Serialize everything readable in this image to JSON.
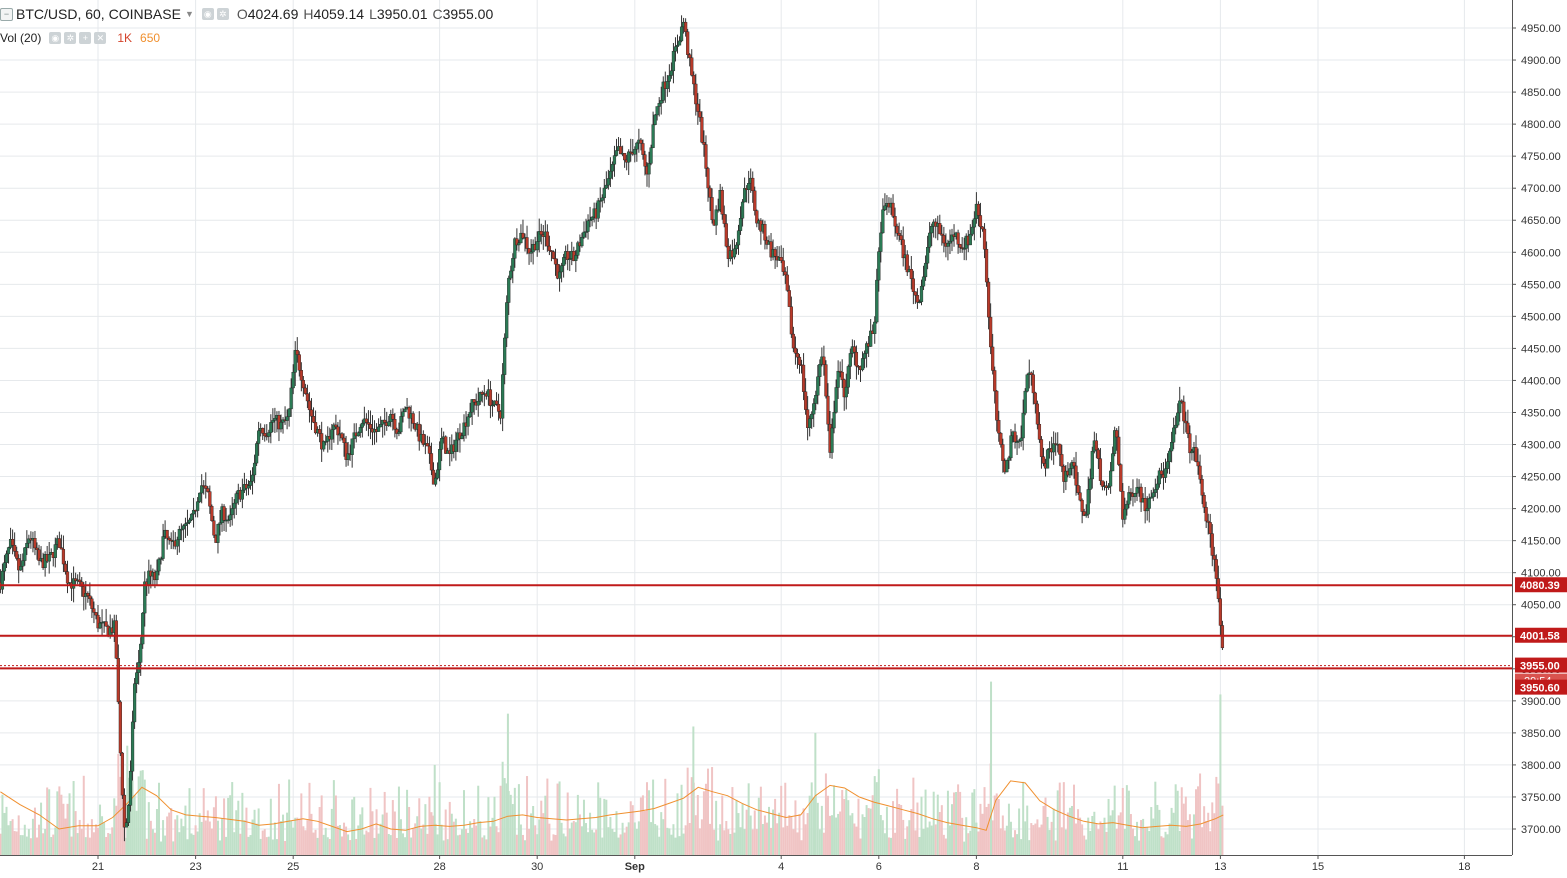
{
  "header": {
    "symbol": "BTC/USD, 60, COINBASE",
    "o_label": "O",
    "o_value": "4024.69",
    "h_label": "H",
    "h_value": "4059.14",
    "l_label": "L",
    "l_value": "3950.01",
    "c_label": "C",
    "c_value": "3955.00",
    "vol_label": "Vol (20)",
    "vol_value": "1K",
    "vol_ma_value": "650"
  },
  "colors": {
    "up": "#2b7a55",
    "down": "#b93a2a",
    "line": "#c01a1a",
    "vol_up": "#bfe0c8",
    "vol_down": "#f0c4c4",
    "vol_ma": "#f0902f",
    "grid": "#e6e9ec"
  },
  "chart_data": {
    "type": "candlestick",
    "ylim": [
      3660,
      4975
    ],
    "yticks": [
      3700,
      3750,
      3800,
      3850,
      3900,
      3950,
      4000,
      4050,
      4100,
      4150,
      4200,
      4250,
      4300,
      4350,
      4400,
      4450,
      4500,
      4550,
      4600,
      4650,
      4700,
      4750,
      4800,
      4850,
      4900,
      4950
    ],
    "ytick_labels": [
      "3700.00",
      "3750.00",
      "3800.00",
      "3850.00",
      "3900.00",
      "3950.00",
      "4000.00",
      "4050.00",
      "4100.00",
      "4150.00",
      "4200.00",
      "4250.00",
      "4300.00",
      "4350.00",
      "4400.00",
      "4450.00",
      "4500.00",
      "4550.00",
      "4600.00",
      "4650.00",
      "4700.00",
      "4750.00",
      "4800.00",
      "4850.00",
      "4900.00",
      "4950.00"
    ],
    "x_ticks": [
      {
        "label": "21",
        "day": 0
      },
      {
        "label": "23",
        "day": 2
      },
      {
        "label": "25",
        "day": 4
      },
      {
        "label": "28",
        "day": 7
      },
      {
        "label": "30",
        "day": 9
      },
      {
        "label": "Sep",
        "day": 11
      },
      {
        "label": "4",
        "day": 14
      },
      {
        "label": "6",
        "day": 16
      },
      {
        "label": "8",
        "day": 18
      },
      {
        "label": "11",
        "day": 21
      },
      {
        "label": "13",
        "day": 23
      },
      {
        "label": "15",
        "day": 25
      },
      {
        "label": "18",
        "day": 28
      }
    ],
    "close_path": [
      [
        -2.0,
        4085
      ],
      [
        -1.8,
        4145
      ],
      [
        -1.6,
        4100
      ],
      [
        -1.4,
        4160
      ],
      [
        -1.2,
        4115
      ],
      [
        -1.0,
        4120
      ],
      [
        -0.8,
        4150
      ],
      [
        -0.6,
        4085
      ],
      [
        -0.4,
        4080
      ],
      [
        -0.2,
        4060
      ],
      [
        0.0,
        4020
      ],
      [
        0.2,
        4010
      ],
      [
        0.35,
        4015
      ],
      [
        0.45,
        3830
      ],
      [
        0.55,
        3690
      ],
      [
        0.65,
        3755
      ],
      [
        0.75,
        3930
      ],
      [
        0.85,
        3960
      ],
      [
        0.95,
        4080
      ],
      [
        1.05,
        4095
      ],
      [
        1.2,
        4090
      ],
      [
        1.35,
        4160
      ],
      [
        1.5,
        4140
      ],
      [
        1.65,
        4160
      ],
      [
        1.8,
        4170
      ],
      [
        1.95,
        4185
      ],
      [
        2.1,
        4240
      ],
      [
        2.25,
        4220
      ],
      [
        2.4,
        4150
      ],
      [
        2.55,
        4195
      ],
      [
        2.7,
        4180
      ],
      [
        2.85,
        4220
      ],
      [
        3.0,
        4230
      ],
      [
        3.15,
        4240
      ],
      [
        3.3,
        4330
      ],
      [
        3.45,
        4320
      ],
      [
        3.6,
        4340
      ],
      [
        3.75,
        4330
      ],
      [
        3.9,
        4340
      ],
      [
        4.05,
        4445
      ],
      [
        4.2,
        4400
      ],
      [
        4.35,
        4350
      ],
      [
        4.5,
        4320
      ],
      [
        4.65,
        4290
      ],
      [
        4.8,
        4330
      ],
      [
        4.95,
        4320
      ],
      [
        5.1,
        4280
      ],
      [
        5.25,
        4310
      ],
      [
        5.4,
        4340
      ],
      [
        5.55,
        4330
      ],
      [
        5.7,
        4320
      ],
      [
        5.85,
        4330
      ],
      [
        6.0,
        4350
      ],
      [
        6.15,
        4320
      ],
      [
        6.3,
        4360
      ],
      [
        6.45,
        4340
      ],
      [
        6.6,
        4310
      ],
      [
        6.75,
        4290
      ],
      [
        6.9,
        4240
      ],
      [
        7.05,
        4310
      ],
      [
        7.2,
        4280
      ],
      [
        7.35,
        4310
      ],
      [
        7.5,
        4330
      ],
      [
        7.65,
        4360
      ],
      [
        7.8,
        4370
      ],
      [
        7.95,
        4385
      ],
      [
        8.1,
        4360
      ],
      [
        8.25,
        4350
      ],
      [
        8.4,
        4550
      ],
      [
        8.55,
        4620
      ],
      [
        8.7,
        4630
      ],
      [
        8.85,
        4600
      ],
      [
        9.0,
        4620
      ],
      [
        9.15,
        4630
      ],
      [
        9.3,
        4600
      ],
      [
        9.45,
        4560
      ],
      [
        9.6,
        4595
      ],
      [
        9.75,
        4590
      ],
      [
        9.9,
        4620
      ],
      [
        10.05,
        4650
      ],
      [
        10.2,
        4660
      ],
      [
        10.35,
        4690
      ],
      [
        10.5,
        4720
      ],
      [
        10.65,
        4760
      ],
      [
        10.8,
        4740
      ],
      [
        10.95,
        4760
      ],
      [
        11.1,
        4770
      ],
      [
        11.25,
        4720
      ],
      [
        11.4,
        4810
      ],
      [
        11.55,
        4850
      ],
      [
        11.7,
        4880
      ],
      [
        11.85,
        4920
      ],
      [
        12.0,
        4960
      ],
      [
        12.15,
        4880
      ],
      [
        12.3,
        4820
      ],
      [
        12.45,
        4740
      ],
      [
        12.6,
        4640
      ],
      [
        12.75,
        4690
      ],
      [
        12.9,
        4600
      ],
      [
        13.05,
        4600
      ],
      [
        13.2,
        4680
      ],
      [
        13.35,
        4720
      ],
      [
        13.5,
        4650
      ],
      [
        13.65,
        4630
      ],
      [
        13.8,
        4600
      ],
      [
        13.95,
        4590
      ],
      [
        14.1,
        4550
      ],
      [
        14.25,
        4450
      ],
      [
        14.4,
        4430
      ],
      [
        14.55,
        4320
      ],
      [
        14.7,
        4380
      ],
      [
        14.85,
        4450
      ],
      [
        15.0,
        4280
      ],
      [
        15.15,
        4420
      ],
      [
        15.3,
        4380
      ],
      [
        15.45,
        4450
      ],
      [
        15.6,
        4420
      ],
      [
        15.75,
        4450
      ],
      [
        15.9,
        4480
      ],
      [
        16.05,
        4650
      ],
      [
        16.2,
        4680
      ],
      [
        16.35,
        4640
      ],
      [
        16.5,
        4600
      ],
      [
        16.65,
        4560
      ],
      [
        16.8,
        4520
      ],
      [
        16.95,
        4580
      ],
      [
        17.1,
        4650
      ],
      [
        17.25,
        4630
      ],
      [
        17.4,
        4610
      ],
      [
        17.55,
        4630
      ],
      [
        17.7,
        4610
      ],
      [
        17.85,
        4620
      ],
      [
        18.0,
        4670
      ],
      [
        18.15,
        4630
      ],
      [
        18.3,
        4440
      ],
      [
        18.45,
        4310
      ],
      [
        18.6,
        4260
      ],
      [
        18.75,
        4320
      ],
      [
        18.9,
        4300
      ],
      [
        19.05,
        4420
      ],
      [
        19.2,
        4380
      ],
      [
        19.35,
        4260
      ],
      [
        19.5,
        4290
      ],
      [
        19.65,
        4310
      ],
      [
        19.8,
        4240
      ],
      [
        19.95,
        4280
      ],
      [
        20.1,
        4210
      ],
      [
        20.25,
        4190
      ],
      [
        20.4,
        4310
      ],
      [
        20.55,
        4250
      ],
      [
        20.7,
        4220
      ],
      [
        20.85,
        4330
      ],
      [
        21.0,
        4190
      ],
      [
        21.15,
        4220
      ],
      [
        21.3,
        4240
      ],
      [
        21.45,
        4200
      ],
      [
        21.6,
        4230
      ],
      [
        21.75,
        4250
      ],
      [
        21.9,
        4260
      ],
      [
        22.05,
        4320
      ],
      [
        22.2,
        4370
      ],
      [
        22.35,
        4300
      ],
      [
        22.5,
        4280
      ],
      [
        22.65,
        4210
      ],
      [
        22.8,
        4150
      ],
      [
        22.95,
        4080
      ],
      [
        23.0,
        4020
      ],
      [
        23.06,
        3955
      ]
    ],
    "volume_ma_path": [
      [
        -2.0,
        3758
      ],
      [
        -1.6,
        3738
      ],
      [
        -1.2,
        3722
      ],
      [
        -0.8,
        3700
      ],
      [
        -0.4,
        3705
      ],
      [
        0.0,
        3705
      ],
      [
        0.3,
        3718
      ],
      [
        0.6,
        3740
      ],
      [
        0.9,
        3765
      ],
      [
        1.2,
        3752
      ],
      [
        1.5,
        3730
      ],
      [
        1.8,
        3722
      ],
      [
        2.1,
        3720
      ],
      [
        2.4,
        3718
      ],
      [
        2.7,
        3715
      ],
      [
        3.0,
        3712
      ],
      [
        3.3,
        3706
      ],
      [
        3.6,
        3708
      ],
      [
        3.9,
        3712
      ],
      [
        4.2,
        3716
      ],
      [
        4.5,
        3712
      ],
      [
        4.8,
        3704
      ],
      [
        5.1,
        3696
      ],
      [
        5.4,
        3700
      ],
      [
        5.7,
        3708
      ],
      [
        6.0,
        3700
      ],
      [
        6.3,
        3698
      ],
      [
        6.6,
        3704
      ],
      [
        6.9,
        3706
      ],
      [
        7.2,
        3704
      ],
      [
        7.5,
        3706
      ],
      [
        7.8,
        3710
      ],
      [
        8.1,
        3712
      ],
      [
        8.4,
        3720
      ],
      [
        8.7,
        3722
      ],
      [
        9.0,
        3718
      ],
      [
        9.3,
        3716
      ],
      [
        9.6,
        3714
      ],
      [
        9.9,
        3716
      ],
      [
        10.2,
        3718
      ],
      [
        10.5,
        3722
      ],
      [
        10.8,
        3725
      ],
      [
        11.1,
        3728
      ],
      [
        11.4,
        3732
      ],
      [
        11.7,
        3740
      ],
      [
        12.0,
        3748
      ],
      [
        12.3,
        3765
      ],
      [
        12.6,
        3758
      ],
      [
        12.9,
        3752
      ],
      [
        13.2,
        3740
      ],
      [
        13.5,
        3730
      ],
      [
        13.8,
        3724
      ],
      [
        14.1,
        3718
      ],
      [
        14.4,
        3722
      ],
      [
        14.7,
        3752
      ],
      [
        15.0,
        3768
      ],
      [
        15.3,
        3764
      ],
      [
        15.6,
        3750
      ],
      [
        15.9,
        3742
      ],
      [
        16.2,
        3736
      ],
      [
        16.5,
        3730
      ],
      [
        16.8,
        3724
      ],
      [
        17.1,
        3716
      ],
      [
        17.4,
        3710
      ],
      [
        17.7,
        3706
      ],
      [
        18.0,
        3702
      ],
      [
        18.2,
        3698
      ],
      [
        18.4,
        3745
      ],
      [
        18.7,
        3775
      ],
      [
        19.0,
        3772
      ],
      [
        19.3,
        3744
      ],
      [
        19.6,
        3730
      ],
      [
        19.9,
        3720
      ],
      [
        20.2,
        3712
      ],
      [
        20.5,
        3708
      ],
      [
        20.8,
        3710
      ],
      [
        21.1,
        3706
      ],
      [
        21.4,
        3702
      ],
      [
        21.7,
        3704
      ],
      [
        22.0,
        3706
      ],
      [
        22.3,
        3704
      ],
      [
        22.6,
        3708
      ],
      [
        22.9,
        3716
      ],
      [
        23.06,
        3722
      ]
    ],
    "volume_spikes": [
      {
        "day": 8.4,
        "value": 3880
      },
      {
        "day": 12.2,
        "value": 3860
      },
      {
        "day": 18.3,
        "value": 3930
      },
      {
        "day": 23.0,
        "value": 3910
      },
      {
        "day": 14.7,
        "value": 3850
      },
      {
        "day": 0.6,
        "value": 3830
      },
      {
        "day": 6.9,
        "value": 3800
      }
    ],
    "hlines": [
      {
        "value": 4080.39,
        "label": "4080.39"
      },
      {
        "value": 4001.58,
        "label": "4001.58"
      },
      {
        "value": 3950.6,
        "label": "3950.60"
      }
    ],
    "last_price": {
      "value": 3955.0,
      "label": "3955.00",
      "countdown": "29:54"
    }
  }
}
